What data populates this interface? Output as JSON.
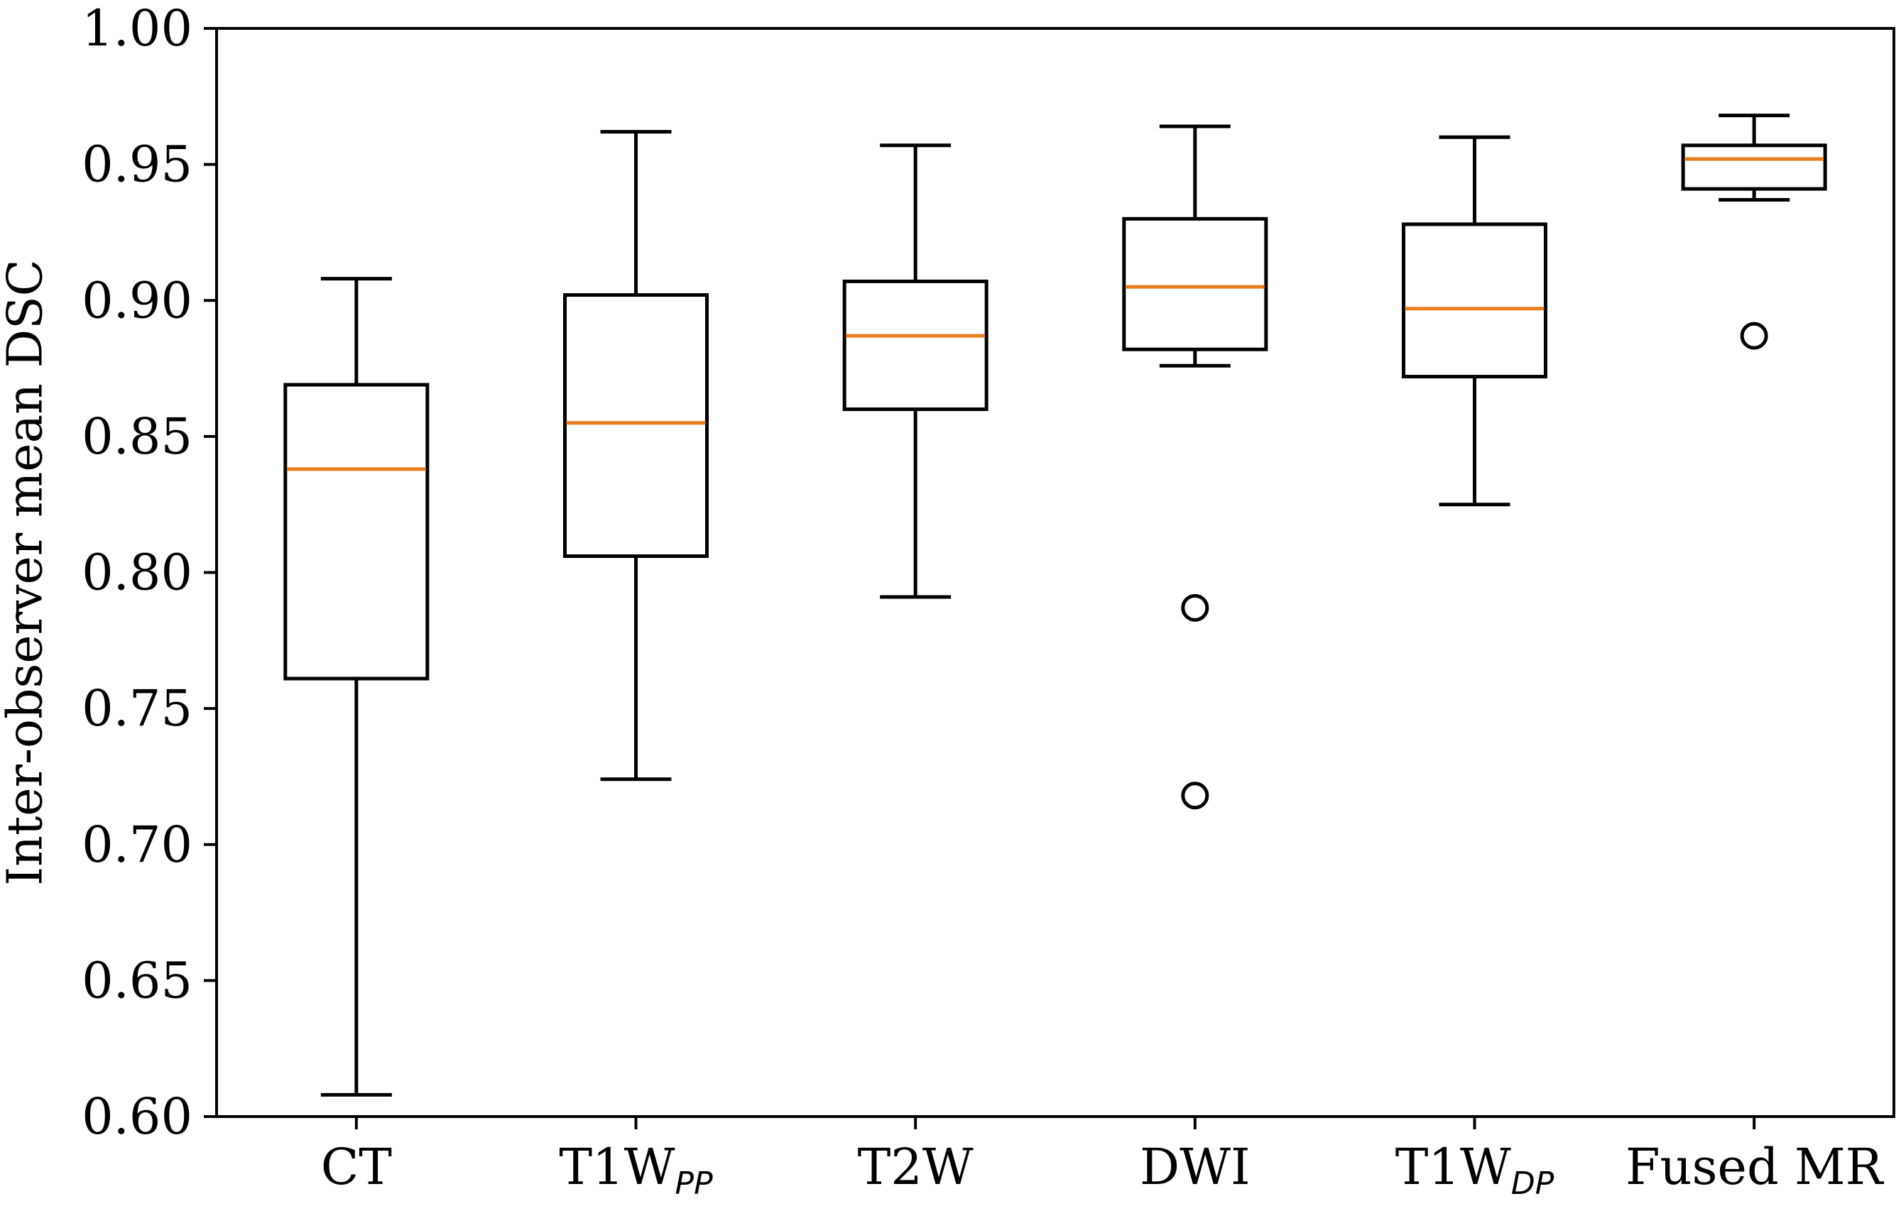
{
  "chart_data": {
    "type": "boxplot",
    "title": "",
    "xlabel": "",
    "ylabel": "Inter-observer mean DSC",
    "ylim": [
      0.6,
      1.0
    ],
    "yticks": [
      {
        "value": 0.6,
        "label": "0.60"
      },
      {
        "value": 0.65,
        "label": "0.65"
      },
      {
        "value": 0.7,
        "label": "0.70"
      },
      {
        "value": 0.75,
        "label": "0.75"
      },
      {
        "value": 0.8,
        "label": "0.80"
      },
      {
        "value": 0.85,
        "label": "0.85"
      },
      {
        "value": 0.9,
        "label": "0.90"
      },
      {
        "value": 0.95,
        "label": "0.95"
      },
      {
        "value": 1.0,
        "label": "1.00"
      }
    ],
    "grid": false,
    "colors": {
      "box": "#000000",
      "median": "#e87d1e",
      "background": "#ffffff"
    },
    "categories": [
      {
        "id": "ct",
        "label": "CT",
        "subscript": "",
        "whisker_low": 0.608,
        "q1": 0.761,
        "median": 0.838,
        "q3": 0.869,
        "whisker_high": 0.908,
        "outliers": []
      },
      {
        "id": "t1w-pp",
        "label": "T1W",
        "subscript": "PP",
        "whisker_low": 0.724,
        "q1": 0.806,
        "median": 0.855,
        "q3": 0.902,
        "whisker_high": 0.962,
        "outliers": []
      },
      {
        "id": "t2w",
        "label": "T2W",
        "subscript": "",
        "whisker_low": 0.791,
        "q1": 0.86,
        "median": 0.887,
        "q3": 0.907,
        "whisker_high": 0.957,
        "outliers": []
      },
      {
        "id": "dwi",
        "label": "DWI",
        "subscript": "",
        "whisker_low": 0.876,
        "q1": 0.882,
        "median": 0.905,
        "q3": 0.93,
        "whisker_high": 0.964,
        "outliers": [
          0.787,
          0.718
        ]
      },
      {
        "id": "t1w-dp",
        "label": "T1W",
        "subscript": "DP",
        "whisker_low": 0.825,
        "q1": 0.872,
        "median": 0.897,
        "q3": 0.928,
        "whisker_high": 0.96,
        "outliers": []
      },
      {
        "id": "fused-mr",
        "label": "Fused MR",
        "subscript": "",
        "whisker_low": 0.937,
        "q1": 0.941,
        "median": 0.952,
        "q3": 0.957,
        "whisker_high": 0.968,
        "outliers": [
          0.887
        ]
      }
    ]
  }
}
